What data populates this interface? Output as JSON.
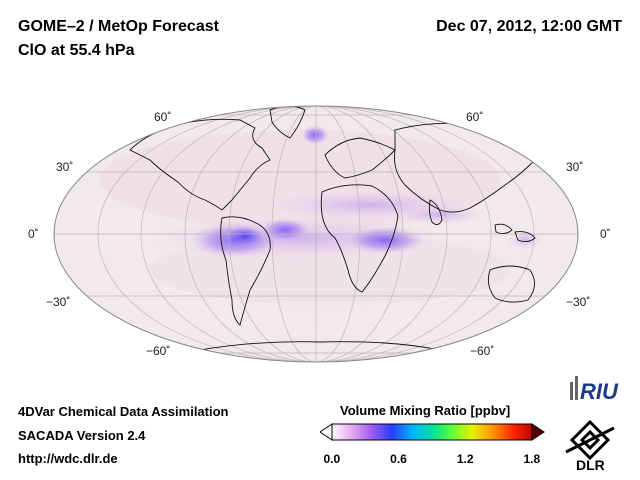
{
  "header": {
    "title": "GOME–2 / MetOp Forecast",
    "subtitle": "ClO at 55.4 hPa",
    "datetime": "Dec 07, 2012, 12:00 GMT"
  },
  "map": {
    "projection": "Mollweide",
    "latitude_labels": {
      "n60": "60˚",
      "n30": "30˚",
      "eq": "0˚",
      "s30": "−30˚",
      "s60": "−60˚"
    }
  },
  "footer": {
    "line1": "4DVar Chemical Data Assimilation",
    "line2": "SACADA Version 2.4",
    "line3": "http://wdc.dlr.de"
  },
  "colorbar": {
    "title": "Volume Mixing Ratio [ppbv]",
    "ticks": [
      "0.0",
      "0.6",
      "1.2",
      "1.8"
    ],
    "min": 0.0,
    "max": 1.8,
    "colors": [
      "#ffffff",
      "#e6a8f0",
      "#9b5cf0",
      "#2a3cff",
      "#00b4ff",
      "#00e0a0",
      "#5cff3c",
      "#e8f000",
      "#ff9a00",
      "#ff2a00",
      "#c00000"
    ]
  },
  "logos": {
    "riu": "RIU",
    "dlr": "DLR"
  }
}
